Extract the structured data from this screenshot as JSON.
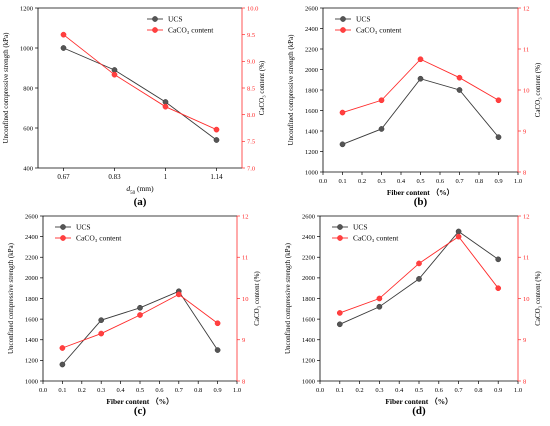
{
  "colors": {
    "ucs": "#3a3a3a",
    "caco3": "#ff2a2a",
    "axis": "#000000",
    "right_axis": "#ff2a2a"
  },
  "chart_data": [
    {
      "panel_label": "(a)",
      "type": "line",
      "xlabel_main": "d",
      "xlabel_sub": "50",
      "xlabel_unit": " (mm)",
      "ylabel_left": "Unconfined compressive strength (kPa)",
      "ylabel_right": "CaCO₃ content (%)",
      "x_categorical": true,
      "categories": [
        "0.67",
        "0.83",
        "1",
        "1.14"
      ],
      "ylim_left": [
        400,
        1200
      ],
      "yticks_left": [
        "400",
        "600",
        "800",
        "1000",
        "1200"
      ],
      "ylim_right": [
        7.0,
        10.0
      ],
      "yticks_right": [
        "7.0",
        "7.5",
        "8.0",
        "8.5",
        "9.0",
        "9.5",
        "10.0"
      ],
      "legend_loc": "top-right",
      "series": [
        {
          "name": "UCS",
          "axis": "left",
          "values": [
            1000,
            890,
            730,
            540
          ]
        },
        {
          "name": "CaCO₃ content",
          "axis": "right",
          "values": [
            9.5,
            8.75,
            8.15,
            7.72
          ]
        }
      ]
    },
    {
      "panel_label": "(b)",
      "type": "line",
      "xlabel": "Fiber content （%）",
      "ylabel_left": "Unconfined compressive strength (kPa)",
      "ylabel_right": "CaCO₃ content (%)",
      "x_categorical": false,
      "xlim": [
        0.0,
        1.0
      ],
      "xticks": [
        "0.0",
        "0.1",
        "0.2",
        "0.3",
        "0.4",
        "0.5",
        "0.6",
        "0.7",
        "0.8",
        "0.9",
        "1.0"
      ],
      "x": [
        0.1,
        0.3,
        0.5,
        0.7,
        0.9
      ],
      "ylim_left": [
        1000,
        2600
      ],
      "yticks_left": [
        "1000",
        "1200",
        "1400",
        "1600",
        "1800",
        "2000",
        "2200",
        "2400",
        "2600"
      ],
      "ylim_right": [
        8,
        12
      ],
      "yticks_right": [
        "8",
        "9",
        "10",
        "11",
        "12"
      ],
      "legend_loc": "top-left",
      "series": [
        {
          "name": "UCS",
          "axis": "left",
          "values": [
            1270,
            1420,
            1910,
            1800,
            1340
          ]
        },
        {
          "name": "CaCO₃ content",
          "axis": "right",
          "values": [
            9.45,
            9.75,
            10.75,
            10.3,
            9.75
          ]
        }
      ]
    },
    {
      "panel_label": "(c)",
      "type": "line",
      "xlabel": "Fiber content （%）",
      "ylabel_left": "Unconfined compressive strength (kPa)",
      "ylabel_right": "CaCO₃ content (%)",
      "x_categorical": false,
      "xlim": [
        0.0,
        1.0
      ],
      "xticks": [
        "0.0",
        "0.1",
        "0.2",
        "0.3",
        "0.4",
        "0.5",
        "0.6",
        "0.7",
        "0.8",
        "0.9",
        "1.0"
      ],
      "x": [
        0.1,
        0.3,
        0.5,
        0.7,
        0.9
      ],
      "ylim_left": [
        1000,
        2600
      ],
      "yticks_left": [
        "1000",
        "1200",
        "1400",
        "1600",
        "1800",
        "2000",
        "2200",
        "2400",
        "2600"
      ],
      "ylim_right": [
        8,
        12
      ],
      "yticks_right": [
        "8",
        "9",
        "10",
        "11",
        "12"
      ],
      "legend_loc": "top-left",
      "series": [
        {
          "name": "UCS",
          "axis": "left",
          "values": [
            1160,
            1590,
            1710,
            1870,
            1300
          ]
        },
        {
          "name": "CaCO₃ content",
          "axis": "right",
          "values": [
            8.8,
            9.15,
            9.6,
            10.1,
            9.4
          ]
        }
      ]
    },
    {
      "panel_label": "(d)",
      "type": "line",
      "xlabel": "Fiber content （%）",
      "ylabel_left": "Unconfined compressive strength (kPa)",
      "ylabel_right": "CaCO₃ content (%)",
      "x_categorical": false,
      "xlim": [
        0.0,
        1.0
      ],
      "xticks": [
        "0.0",
        "0.1",
        "0.2",
        "0.3",
        "0.4",
        "0.5",
        "0.6",
        "0.7",
        "0.8",
        "0.9",
        "1.0"
      ],
      "x": [
        0.1,
        0.3,
        0.5,
        0.7,
        0.9
      ],
      "ylim_left": [
        1000,
        2600
      ],
      "yticks_left": [
        "1000",
        "1200",
        "1400",
        "1600",
        "1800",
        "2000",
        "2200",
        "2400",
        "2600"
      ],
      "ylim_right": [
        8,
        12
      ],
      "yticks_right": [
        "8",
        "9",
        "10",
        "11",
        "12"
      ],
      "legend_loc": "top-left",
      "series": [
        {
          "name": "UCS",
          "axis": "left",
          "values": [
            1550,
            1720,
            1990,
            2450,
            2180
          ]
        },
        {
          "name": "CaCO₃ content",
          "axis": "right",
          "values": [
            9.65,
            10.0,
            10.85,
            11.5,
            10.25
          ]
        }
      ]
    }
  ]
}
